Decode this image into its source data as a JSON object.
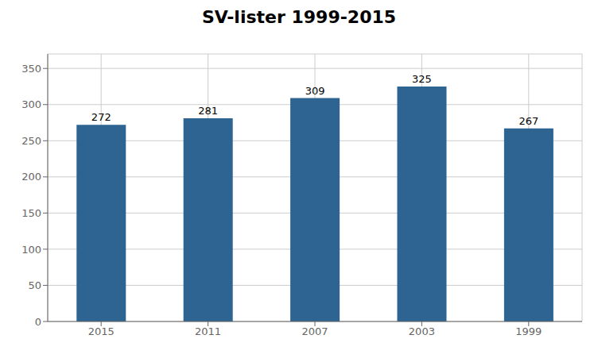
{
  "chart_data": {
    "type": "bar",
    "title": "SV-lister 1999-2015",
    "categories": [
      "2015",
      "2011",
      "2007",
      "2003",
      "1999"
    ],
    "values": [
      272,
      281,
      309,
      325,
      267
    ],
    "color": "#2E6492",
    "ylim": [
      0,
      370
    ],
    "yticks": [
      0,
      50,
      100,
      150,
      200,
      250,
      300,
      350
    ],
    "grid": true,
    "data_labels": true
  }
}
